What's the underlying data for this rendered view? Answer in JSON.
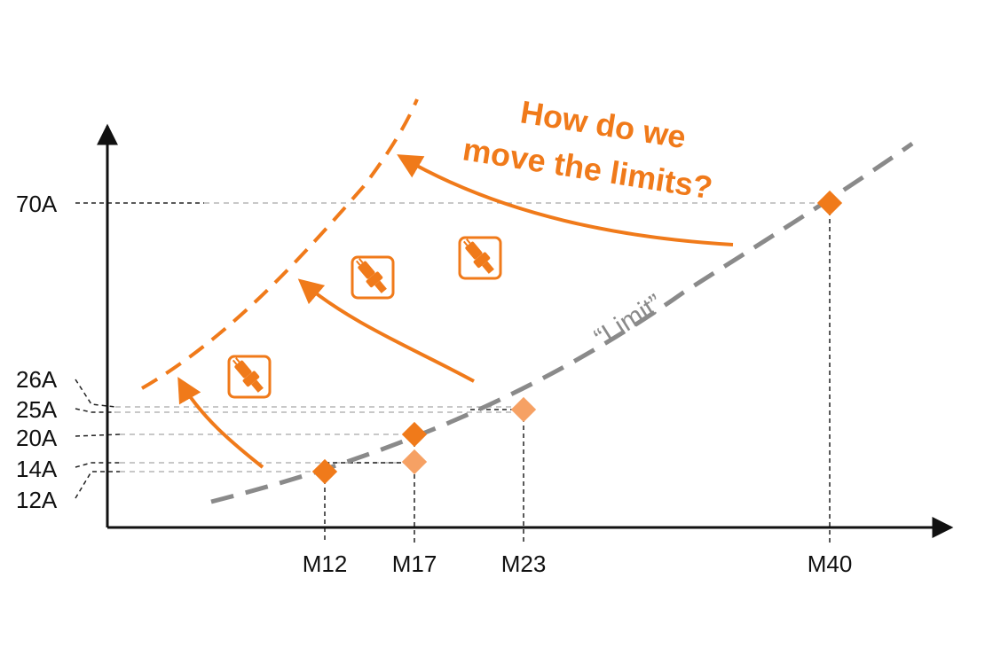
{
  "colors": {
    "accent": "#f07a1a",
    "accent_light": "#f6a164",
    "limit_line": "#8a8a8a",
    "axis": "#111111",
    "guide_dark": "#222222",
    "guide_light": "#b5b5b5"
  },
  "title": {
    "line1": "How do we",
    "line2": "move the limits?"
  },
  "limit_label": "“Limit”",
  "y_labels": {
    "a70": "70A",
    "a26": "26A",
    "a25": "25A",
    "a20": "20A",
    "a14": "14A",
    "a12": "12A"
  },
  "x_labels": {
    "m12": "M12",
    "m17": "M17",
    "m23": "M23",
    "m40": "M40"
  },
  "markers": [
    {
      "label": "M12",
      "current": "12A",
      "style": "solid"
    },
    {
      "label": "M17",
      "current": "20A",
      "style": "solid"
    },
    {
      "label": "M17",
      "current": "14A",
      "style": "light"
    },
    {
      "label": "M23",
      "current": "25A",
      "style": "light"
    },
    {
      "label": "M40",
      "current": "70A",
      "style": "solid"
    }
  ],
  "icons": [
    "connector-icon",
    "connector-icon",
    "connector-icon"
  ]
}
